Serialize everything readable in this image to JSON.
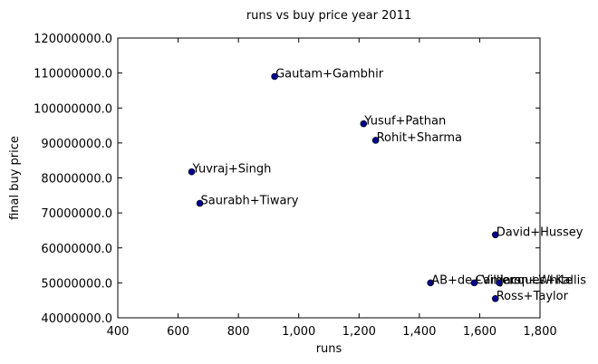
{
  "chart_data": {
    "type": "scatter",
    "title": "runs vs buy price year 2011",
    "xlabel": "runs",
    "ylabel": "final buy price",
    "xlim": [
      400,
      1800
    ],
    "ylim": [
      40000000,
      120000000
    ],
    "x_ticks": [
      400,
      600,
      800,
      1000,
      1200,
      1400,
      1600,
      1800
    ],
    "x_tick_labels": [
      "400",
      "600",
      "800",
      "1,000",
      "1,200",
      "1,400",
      "1,600",
      "1,800"
    ],
    "y_ticks": [
      40000000,
      50000000,
      60000000,
      70000000,
      80000000,
      90000000,
      100000000,
      110000000,
      120000000
    ],
    "y_tick_labels": [
      "40000000.0",
      "50000000.0",
      "60000000.0",
      "70000000.0",
      "80000000.0",
      "90000000.0",
      "100000000.0",
      "110000000.0",
      "120000000.0"
    ],
    "grid": false,
    "marker_color": "#00008b",
    "points": [
      {
        "label": "Gautam+Gambhir",
        "x": 920,
        "y": 109000000
      },
      {
        "label": "Yusuf+Pathan",
        "x": 1215,
        "y": 95500000
      },
      {
        "label": "Rohit+Sharma",
        "x": 1255,
        "y": 90750000
      },
      {
        "label": "Yuvraj+Singh",
        "x": 645,
        "y": 81750000
      },
      {
        "label": "Saurabh+Tiwary",
        "x": 672,
        "y": 72750000
      },
      {
        "label": "David+Hussey",
        "x": 1652,
        "y": 63750000
      },
      {
        "label": "AB+de+Villiers",
        "x": 1437,
        "y": 50000000
      },
      {
        "label": "Cameron+White",
        "x": 1582,
        "y": 50000000
      },
      {
        "label": "Jacques+Kallis",
        "x": 1665,
        "y": 50000000
      },
      {
        "label": "Ross+Taylor",
        "x": 1652,
        "y": 45500000
      }
    ]
  }
}
